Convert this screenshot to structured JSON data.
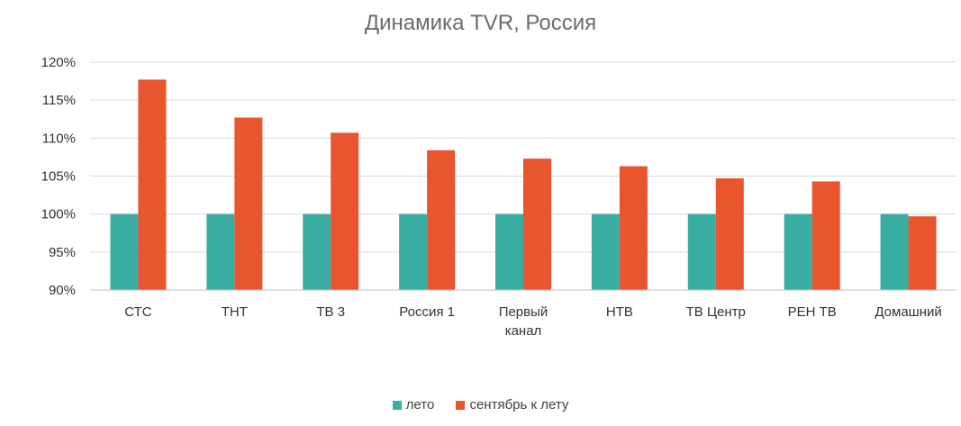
{
  "chart_data": {
    "type": "bar",
    "title": "Динамика TVR, Россия",
    "categories": [
      "СТС",
      "ТНТ",
      "ТВ 3",
      "Россия 1",
      "Первый канал",
      "НТВ",
      "ТВ Центр",
      "РЕН ТВ",
      "Домашний"
    ],
    "series": [
      {
        "name": "лето",
        "color": "#3aada3",
        "values": [
          100,
          100,
          100,
          100,
          100,
          100,
          100,
          100,
          100
        ]
      },
      {
        "name": "сентябрь к лету",
        "color": "#e8552f",
        "values": [
          117.7,
          112.7,
          110.7,
          108.4,
          107.3,
          106.3,
          104.7,
          104.3,
          99.7
        ]
      }
    ],
    "yticks": [
      "90%",
      "95%",
      "100%",
      "105%",
      "110%",
      "115%",
      "120%"
    ],
    "ylim": [
      90,
      120
    ],
    "grid": true,
    "legend": "bottom"
  }
}
